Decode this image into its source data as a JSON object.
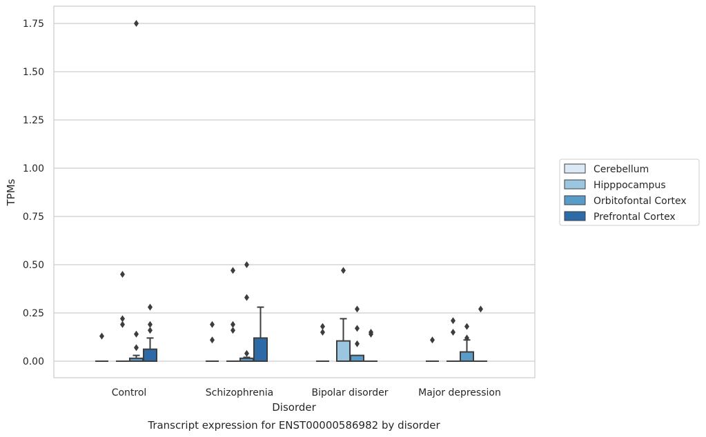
{
  "chart_data": {
    "type": "box",
    "caption": "Transcript expression for ENST00000586982 by disorder",
    "xlabel": "Disorder",
    "ylabel": "TPMs",
    "ylim": [
      -0.085,
      1.84
    ],
    "yticks": [
      "0.00",
      "0.25",
      "0.50",
      "0.75",
      "1.00",
      "1.25",
      "1.50",
      "1.75"
    ],
    "grid": "horizontal",
    "legend_position": "right",
    "categories": [
      "Control",
      "Schizophrenia",
      "Bipolar disorder",
      "Major depression"
    ],
    "series": [
      {
        "name": "Cerebellum",
        "color": "#dbe9f6",
        "boxes": [
          {
            "q1": 0,
            "median": 0,
            "q3": 0,
            "whisker_low": 0,
            "whisker_high": 0,
            "outliers": [
              0.13
            ]
          },
          {
            "q1": 0,
            "median": 0,
            "q3": 0,
            "whisker_low": 0,
            "whisker_high": 0,
            "outliers": [
              0.11,
              0.19
            ]
          },
          {
            "q1": 0,
            "median": 0,
            "q3": 0,
            "whisker_low": 0,
            "whisker_high": 0,
            "outliers": [
              0.15,
              0.18
            ]
          },
          {
            "q1": 0,
            "median": 0,
            "q3": 0,
            "whisker_low": 0,
            "whisker_high": 0,
            "outliers": [
              0.11
            ]
          }
        ]
      },
      {
        "name": "Hipppocampus",
        "color": "#9ac6df",
        "boxes": [
          {
            "q1": 0,
            "median": 0,
            "q3": 0,
            "whisker_low": 0,
            "whisker_high": 0,
            "outliers": [
              0.19,
              0.22,
              0.45
            ]
          },
          {
            "q1": 0,
            "median": 0,
            "q3": 0,
            "whisker_low": 0,
            "whisker_high": 0,
            "outliers": [
              0.16,
              0.19,
              0.47
            ]
          },
          {
            "q1": 0,
            "median": 0,
            "q3": 0.105,
            "whisker_low": 0,
            "whisker_high": 0.22,
            "outliers": [
              0.47
            ]
          },
          {
            "q1": 0,
            "median": 0,
            "q3": 0,
            "whisker_low": 0,
            "whisker_high": 0,
            "outliers": [
              0.15,
              0.21
            ]
          }
        ]
      },
      {
        "name": "Orbitofontal Cortex",
        "color": "#5a9bc8",
        "boxes": [
          {
            "q1": 0,
            "median": 0,
            "q3": 0.015,
            "whisker_low": 0,
            "whisker_high": 0.03,
            "outliers": [
              0.07,
              0.14,
              1.75
            ]
          },
          {
            "q1": 0,
            "median": 0,
            "q3": 0.015,
            "whisker_low": 0,
            "whisker_high": 0.02,
            "outliers": [
              0.04,
              0.33,
              0.5
            ]
          },
          {
            "q1": 0,
            "median": 0,
            "q3": 0.03,
            "whisker_low": 0,
            "whisker_high": 0.03,
            "outliers": [
              0.09,
              0.17,
              0.27
            ]
          },
          {
            "q1": 0,
            "median": 0,
            "q3": 0.048,
            "whisker_low": 0,
            "whisker_high": 0.11,
            "outliers": [
              0.12,
              0.18
            ]
          }
        ]
      },
      {
        "name": "Prefrontal Cortex",
        "color": "#2c6aa8",
        "boxes": [
          {
            "q1": 0,
            "median": 0,
            "q3": 0.062,
            "whisker_low": 0,
            "whisker_high": 0.12,
            "outliers": [
              0.16,
              0.19,
              0.28
            ]
          },
          {
            "q1": 0,
            "median": 0,
            "q3": 0.12,
            "whisker_low": 0,
            "whisker_high": 0.28,
            "outliers": []
          },
          {
            "q1": 0,
            "median": 0,
            "q3": 0,
            "whisker_low": 0,
            "whisker_high": 0,
            "outliers": [
              0.14,
              0.15
            ]
          },
          {
            "q1": 0,
            "median": 0,
            "q3": 0,
            "whisker_low": 0,
            "whisker_high": 0,
            "outliers": [
              0.27
            ]
          }
        ]
      }
    ]
  },
  "colors": {
    "grid": "#cccccc",
    "frame": "#cccccc",
    "line": "#3d3d3d",
    "outlier": "#3d3d3d"
  }
}
